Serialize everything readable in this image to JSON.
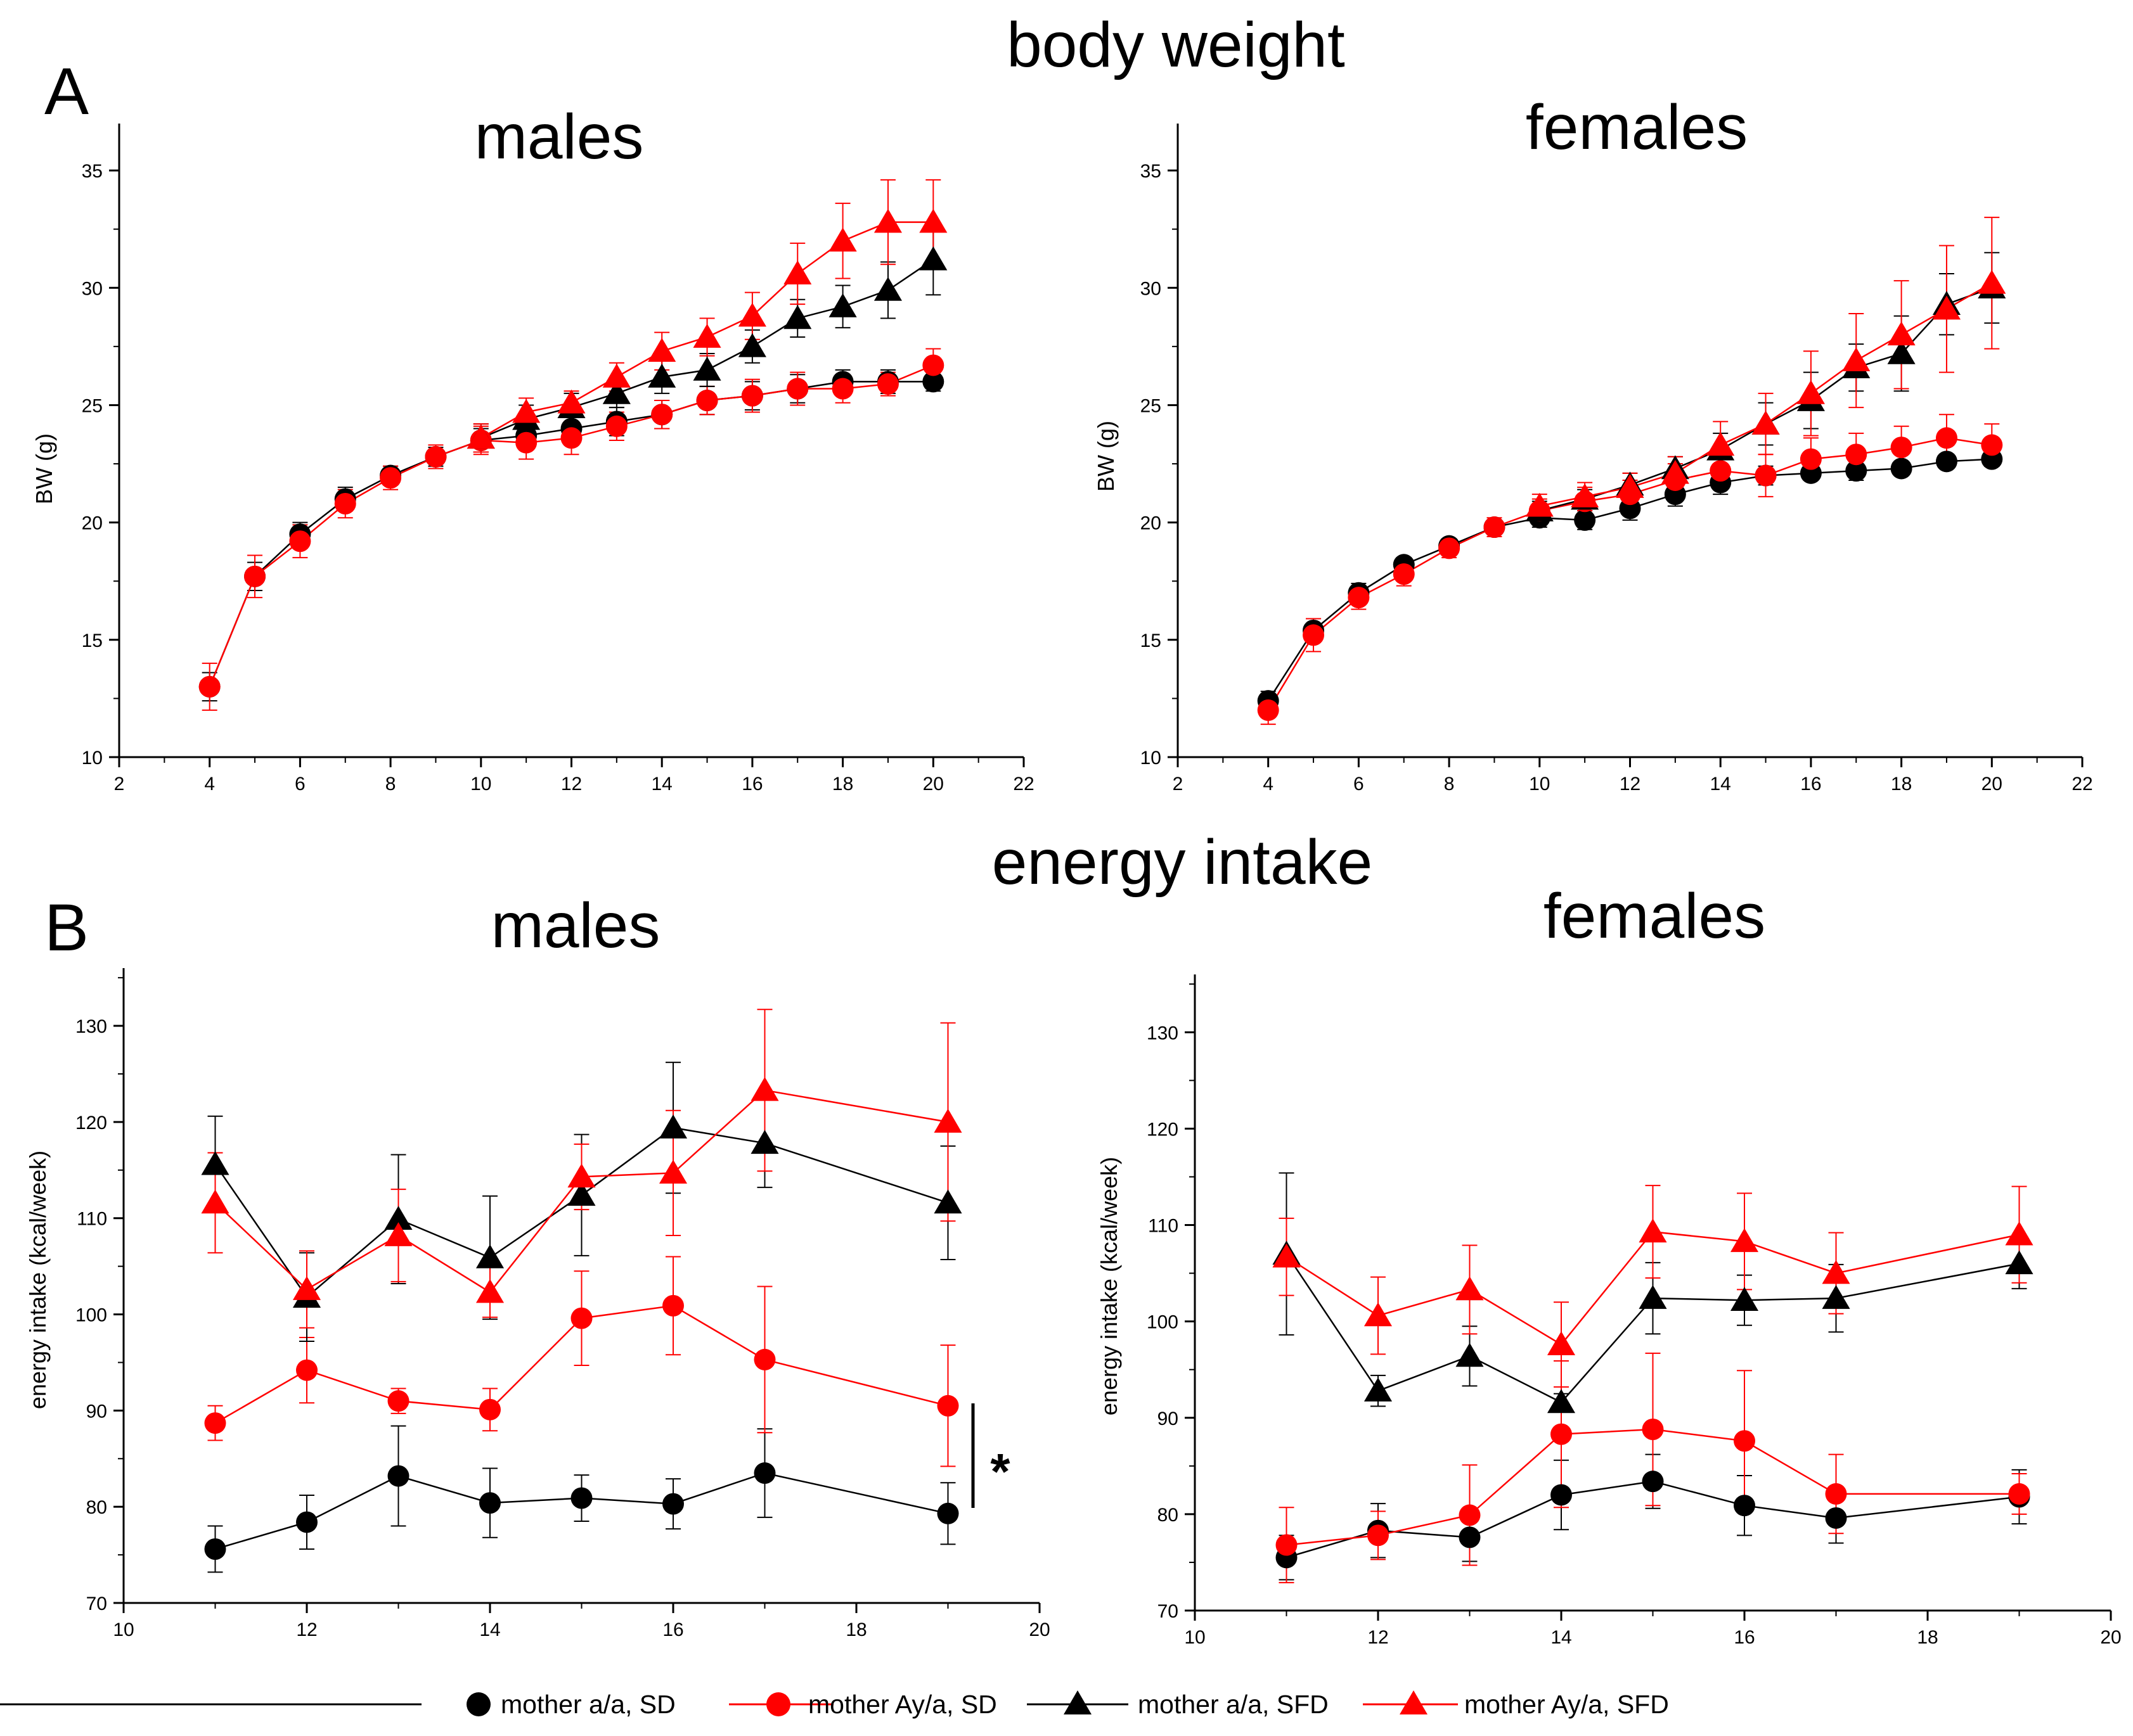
{
  "figure": {
    "section_a_letter": "A",
    "section_b_letter": "B",
    "section_a_title": "body weight",
    "section_b_title": "energy intake",
    "significance_marker": "*"
  },
  "legend": [
    {
      "label": "mother a/a, SD",
      "color": "#000000",
      "marker": "circle"
    },
    {
      "label": "mother Ay/a, SD",
      "color": "#ff0000",
      "marker": "circle"
    },
    {
      "label": "mother a/a, SFD",
      "color": "#000000",
      "marker": "triangle"
    },
    {
      "label": "mother Ay/a, SFD",
      "color": "#ff0000",
      "marker": "triangle"
    }
  ],
  "chart_data": [
    {
      "type": "line",
      "title": "males",
      "xlabel": "",
      "ylabel": "BW (g)",
      "xlim": [
        2,
        22
      ],
      "ylim": [
        10,
        37
      ],
      "xticks": [
        2,
        4,
        6,
        8,
        10,
        12,
        14,
        16,
        18,
        20,
        22
      ],
      "yticks": [
        10,
        15,
        20,
        25,
        30,
        35
      ],
      "x": [
        4,
        5,
        6,
        7,
        8,
        9,
        10,
        11,
        12,
        13,
        14,
        15,
        16,
        17,
        18,
        19,
        20
      ],
      "series": [
        {
          "name": "mother a/a, SD",
          "color": "#000000",
          "marker": "circle",
          "values": [
            13.0,
            17.7,
            19.5,
            21.0,
            22.0,
            22.8,
            23.5,
            23.7,
            24.0,
            24.3,
            24.6,
            25.2,
            25.4,
            25.7,
            26.0,
            26.0,
            26.0
          ],
          "errors": [
            0.6,
            0.6,
            0.5,
            0.5,
            0.4,
            0.4,
            0.5,
            0.6,
            0.6,
            0.6,
            0.6,
            0.6,
            0.6,
            0.6,
            0.5,
            0.5,
            0.4
          ]
        },
        {
          "name": "mother Ay/a, SD",
          "color": "#ff0000",
          "marker": "circle",
          "values": [
            13.0,
            17.7,
            19.2,
            20.8,
            21.9,
            22.8,
            23.5,
            23.4,
            23.6,
            24.1,
            24.6,
            25.2,
            25.4,
            25.7,
            25.7,
            25.9,
            26.7
          ],
          "errors": [
            1.0,
            0.9,
            0.7,
            0.6,
            0.5,
            0.5,
            0.6,
            0.7,
            0.7,
            0.6,
            0.6,
            0.6,
            0.7,
            0.7,
            0.6,
            0.5,
            0.7
          ]
        },
        {
          "name": "mother a/a, SFD",
          "color": "#000000",
          "marker": "triangle",
          "values": [
            null,
            null,
            null,
            null,
            null,
            null,
            23.6,
            24.4,
            24.9,
            25.5,
            26.2,
            26.5,
            27.5,
            28.7,
            29.2,
            29.9,
            31.2
          ],
          "errors": [
            null,
            null,
            null,
            null,
            null,
            null,
            0.6,
            0.6,
            0.6,
            0.6,
            0.7,
            0.7,
            0.7,
            0.8,
            0.9,
            1.2,
            1.5
          ]
        },
        {
          "name": "mother Ay/a, SFD",
          "color": "#ff0000",
          "marker": "triangle",
          "values": [
            null,
            null,
            null,
            null,
            null,
            null,
            23.6,
            24.7,
            25.1,
            26.2,
            27.3,
            27.9,
            28.8,
            30.6,
            32.0,
            32.8,
            32.8
          ],
          "errors": [
            null,
            null,
            null,
            null,
            null,
            null,
            0.6,
            0.6,
            0.5,
            0.6,
            0.8,
            0.8,
            1.0,
            1.3,
            1.6,
            1.8,
            1.8
          ]
        }
      ]
    },
    {
      "type": "line",
      "title": "females",
      "xlabel": "",
      "ylabel": "BW (g)",
      "xlim": [
        2,
        22
      ],
      "ylim": [
        10,
        37
      ],
      "xticks": [
        2,
        4,
        6,
        8,
        10,
        12,
        14,
        16,
        18,
        20,
        22
      ],
      "yticks": [
        10,
        15,
        20,
        25,
        30,
        35
      ],
      "x": [
        4,
        5,
        6,
        7,
        8,
        9,
        10,
        11,
        12,
        13,
        14,
        15,
        16,
        17,
        18,
        19,
        20
      ],
      "series": [
        {
          "name": "mother a/a, SD",
          "color": "#000000",
          "marker": "circle",
          "values": [
            12.4,
            15.4,
            17.0,
            18.2,
            19.0,
            19.8,
            20.2,
            20.1,
            20.6,
            21.2,
            21.7,
            22.0,
            22.1,
            22.2,
            22.3,
            22.6,
            22.7
          ],
          "errors": [
            0.4,
            0.5,
            0.4,
            0.3,
            0.3,
            0.3,
            0.4,
            0.4,
            0.5,
            0.5,
            0.5,
            0.4,
            0.3,
            0.4,
            0.3,
            0.3,
            0.3
          ]
        },
        {
          "name": "mother Ay/a, SD",
          "color": "#ff0000",
          "marker": "circle",
          "values": [
            12.0,
            15.2,
            16.8,
            17.8,
            18.9,
            19.8,
            20.5,
            20.9,
            21.2,
            21.8,
            22.2,
            22.0,
            22.7,
            22.9,
            23.2,
            23.6,
            23.3
          ],
          "errors": [
            0.6,
            0.7,
            0.5,
            0.5,
            0.4,
            0.4,
            0.5,
            0.6,
            0.6,
            0.7,
            0.7,
            0.9,
            0.9,
            0.9,
            0.9,
            1.0,
            0.9
          ]
        },
        {
          "name": "mother a/a, SFD",
          "color": "#000000",
          "marker": "triangle",
          "values": [
            null,
            null,
            null,
            null,
            null,
            null,
            20.5,
            21.0,
            21.6,
            22.3,
            23.1,
            24.2,
            25.2,
            26.6,
            27.2,
            29.3,
            30.0
          ],
          "errors": [
            null,
            null,
            null,
            null,
            null,
            null,
            0.4,
            0.4,
            0.5,
            0.5,
            0.7,
            0.9,
            1.2,
            1.0,
            1.6,
            1.3,
            1.5
          ]
        },
        {
          "name": "mother Ay/a, SFD",
          "color": "#ff0000",
          "marker": "triangle",
          "values": [
            null,
            null,
            null,
            null,
            null,
            null,
            20.7,
            21.1,
            21.5,
            22.1,
            23.3,
            24.2,
            25.5,
            26.9,
            28.0,
            29.1,
            30.2
          ],
          "errors": [
            null,
            null,
            null,
            null,
            null,
            null,
            0.5,
            0.6,
            0.6,
            0.7,
            1.0,
            1.3,
            1.8,
            2.0,
            2.3,
            2.7,
            2.8
          ]
        }
      ]
    },
    {
      "type": "line",
      "title": "males",
      "xlabel": "",
      "ylabel": "energy intake (kcal/week)",
      "xlim": [
        10,
        20
      ],
      "ylim": [
        70,
        136
      ],
      "xticks": [
        10,
        12,
        14,
        16,
        18,
        20
      ],
      "yticks": [
        70,
        80,
        90,
        100,
        110,
        120,
        130
      ],
      "x": [
        11,
        12,
        13,
        14,
        15,
        16,
        17,
        19
      ],
      "series": [
        {
          "name": "mother a/a, SD",
          "color": "#000000",
          "marker": "circle",
          "values": [
            75.6,
            78.4,
            83.2,
            80.4,
            80.9,
            80.3,
            83.5,
            79.3
          ],
          "errors": [
            2.4,
            2.8,
            5.2,
            3.6,
            2.4,
            2.6,
            4.6,
            3.2
          ]
        },
        {
          "name": "mother Ay/a, SD",
          "color": "#ff0000",
          "marker": "circle",
          "values": [
            88.7,
            94.2,
            91.0,
            90.1,
            99.6,
            100.9,
            95.3,
            90.5
          ],
          "errors": [
            1.8,
            3.4,
            1.3,
            2.2,
            4.9,
            5.1,
            7.6,
            6.3
          ]
        },
        {
          "name": "mother a/a, SFD",
          "color": "#000000",
          "marker": "triangle",
          "values": [
            115.6,
            101.8,
            109.9,
            105.9,
            112.4,
            119.4,
            117.8,
            111.6
          ],
          "errors": [
            5.0,
            4.6,
            6.7,
            6.4,
            6.3,
            6.8,
            4.6,
            5.9
          ]
        },
        {
          "name": "mother Ay/a, SFD",
          "color": "#ff0000",
          "marker": "triangle",
          "values": [
            111.6,
            102.6,
            108.2,
            102.3,
            114.3,
            114.7,
            123.3,
            120.0
          ],
          "errors": [
            5.2,
            4.0,
            4.8,
            2.6,
            3.4,
            6.5,
            8.4,
            10.3
          ]
        }
      ]
    },
    {
      "type": "line",
      "title": "females",
      "xlabel": "",
      "ylabel": "energy intake (kcal/week)",
      "xlim": [
        10,
        20
      ],
      "ylim": [
        70,
        136
      ],
      "xticks": [
        10,
        12,
        14,
        16,
        18,
        20
      ],
      "yticks": [
        70,
        80,
        90,
        100,
        110,
        120,
        130
      ],
      "x": [
        11,
        12,
        13,
        14,
        15,
        16,
        17,
        19
      ],
      "series": [
        {
          "name": "mother a/a, SD",
          "color": "#000000",
          "marker": "circle",
          "values": [
            75.5,
            78.3,
            77.6,
            82.0,
            83.4,
            80.9,
            79.6,
            81.8
          ],
          "errors": [
            2.3,
            2.8,
            2.5,
            3.6,
            2.8,
            3.1,
            2.6,
            2.8
          ]
        },
        {
          "name": "mother Ay/a, SD",
          "color": "#ff0000",
          "marker": "circle",
          "values": [
            76.8,
            77.8,
            79.9,
            88.3,
            88.8,
            87.6,
            82.1,
            82.1
          ],
          "errors": [
            3.9,
            2.5,
            5.2,
            7.6,
            7.9,
            7.3,
            4.1,
            2.1
          ]
        },
        {
          "name": "mother a/a, SFD",
          "color": "#000000",
          "marker": "triangle",
          "values": [
            107.0,
            92.8,
            96.4,
            91.6,
            102.4,
            102.2,
            102.4,
            106.0
          ],
          "errors": [
            8.4,
            1.6,
            3.1,
            0.9,
            3.7,
            2.6,
            3.5,
            2.6
          ]
        },
        {
          "name": "mother Ay/a, SFD",
          "color": "#ff0000",
          "marker": "triangle",
          "values": [
            106.7,
            100.6,
            103.3,
            97.6,
            109.3,
            108.3,
            105.0,
            109.0
          ],
          "errors": [
            4.0,
            4.0,
            4.6,
            4.4,
            4.8,
            5.0,
            4.2,
            5.0
          ]
        }
      ]
    }
  ]
}
